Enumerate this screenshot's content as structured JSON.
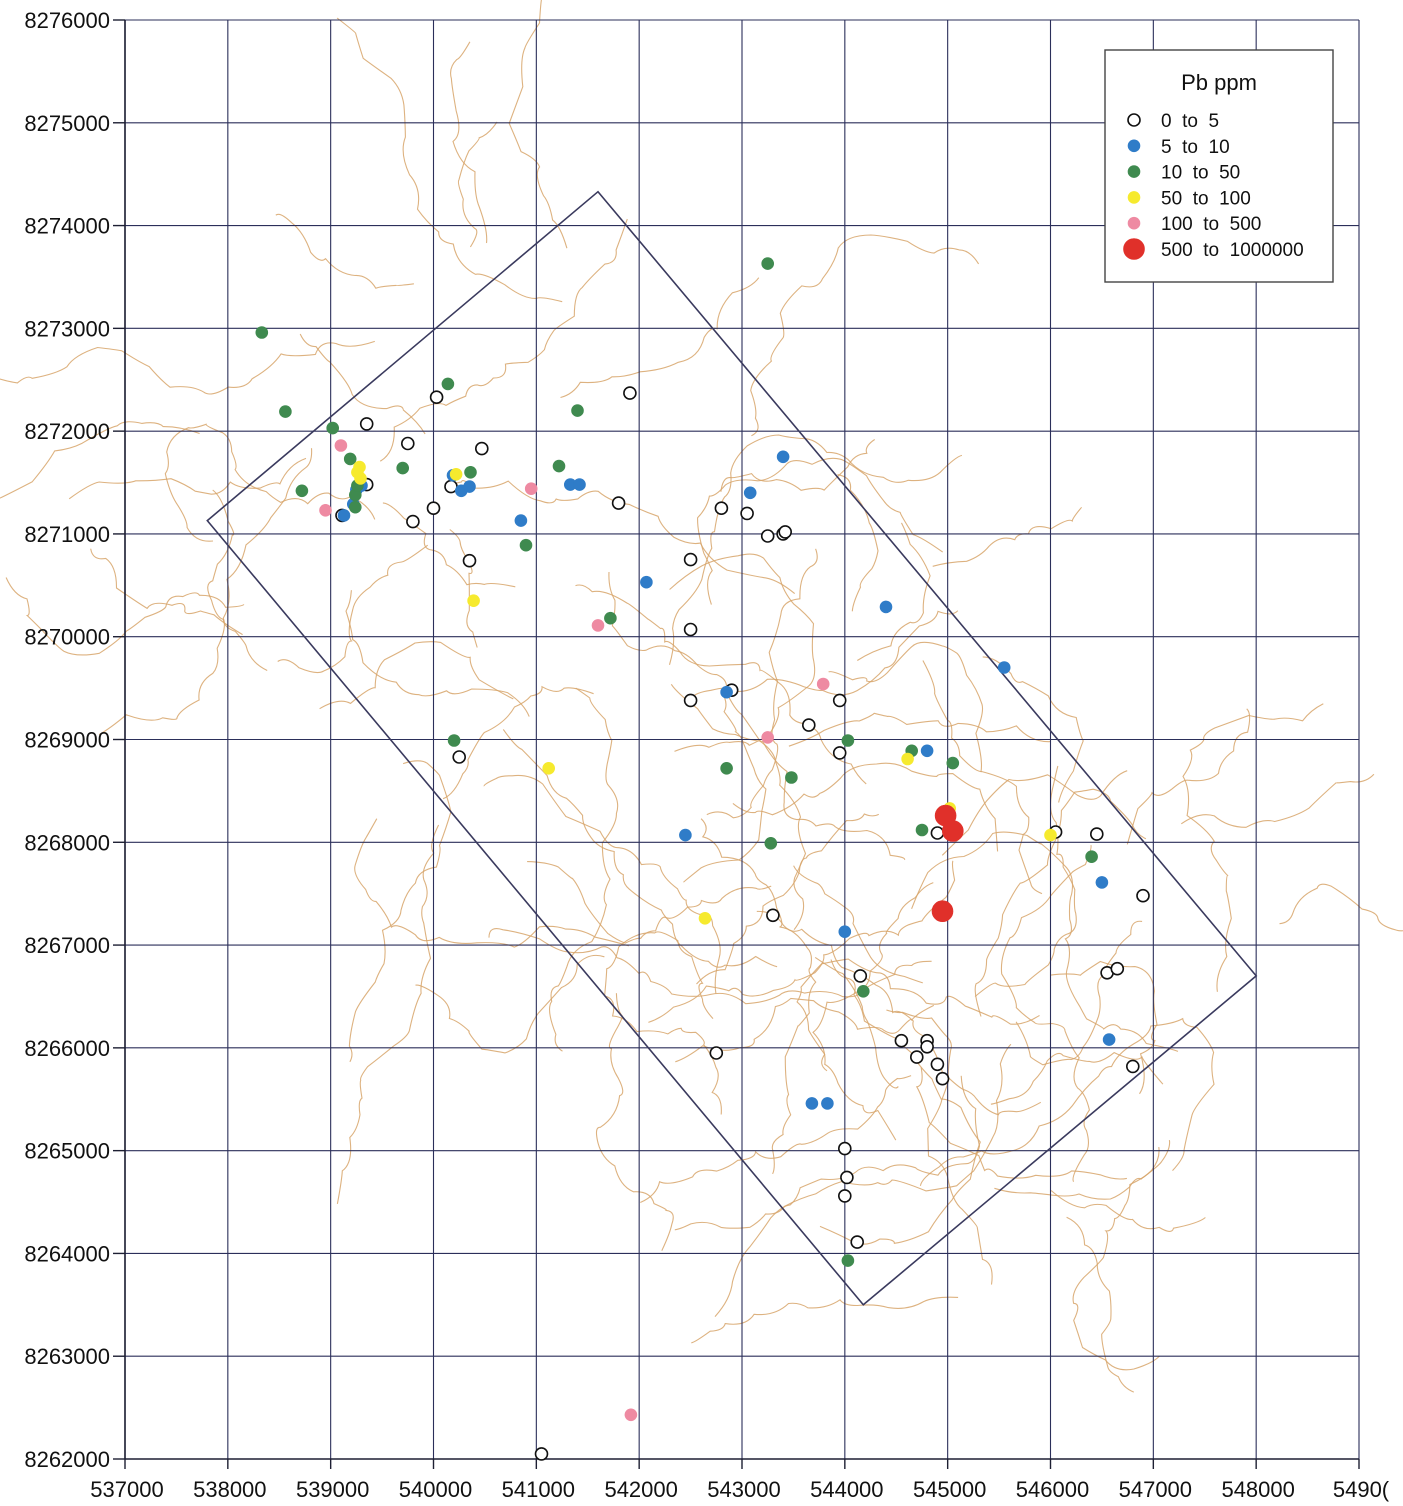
{
  "chart_data": {
    "type": "scatter",
    "title": "",
    "xlabel": "",
    "ylabel": "",
    "xlim": [
      537000,
      549000
    ],
    "ylim": [
      8262000,
      8276000
    ],
    "grid": true,
    "x_ticks": [
      "537000",
      "538000",
      "539000",
      "540000",
      "541000",
      "542000",
      "543000",
      "544000",
      "545000",
      "546000",
      "547000",
      "548000",
      "5490("
    ],
    "y_ticks": [
      "8276000",
      "8275000",
      "8274000",
      "8273000",
      "8272000",
      "8271000",
      "8270000",
      "8269000",
      "8268000",
      "8267000",
      "8266000",
      "8265000",
      "8264000",
      "8263000",
      "8262000"
    ],
    "legend": {
      "title": "Pb ppm",
      "placement": "top-right",
      "entries": [
        {
          "label": "0  to  5",
          "class": "c0",
          "color": "#ffffff",
          "stroke": "#111111"
        },
        {
          "label": "5  to  10",
          "class": "c1",
          "color": "#2f7cc8",
          "stroke": "#2f7cc8"
        },
        {
          "label": "10  to  50",
          "class": "c2",
          "color": "#3f8a4f",
          "stroke": "#3f8a4f"
        },
        {
          "label": "50  to  100",
          "class": "c3",
          "color": "#f6ea2e",
          "stroke": "#f6ea2e"
        },
        {
          "label": "100  to  500",
          "class": "c4",
          "color": "#ee8aa2",
          "stroke": "#ee8aa2"
        },
        {
          "label": "500  to  1000000",
          "class": "c5",
          "color": "#e0302a",
          "stroke": "#e0302a"
        }
      ]
    },
    "survey_polygon": [
      [
        537800,
        8271130
      ],
      [
        541600,
        8274330
      ],
      [
        548000,
        8266700
      ],
      [
        544180,
        8263500
      ]
    ],
    "series": [
      {
        "class": "c0",
        "x": [
          540030,
          541910,
          539350,
          539750,
          540470,
          540170,
          540000,
          539800,
          539350,
          539110,
          540350,
          541800,
          542800,
          543050,
          543250,
          543400,
          543420,
          542500,
          542500,
          542500,
          542900,
          543650,
          543950,
          543950,
          540250,
          544900,
          546050,
          546450,
          546900,
          543300,
          544150,
          546550,
          546650,
          542750,
          544550,
          544700,
          544800,
          544900,
          544950,
          544800,
          546800,
          544000,
          544020,
          544000,
          544120,
          541050
        ],
        "y": [
          8272330,
          8272370,
          8272070,
          8271880,
          8271830,
          8271460,
          8271250,
          8271120,
          8271480,
          8271180,
          8270740,
          8271300,
          8271250,
          8271200,
          8270980,
          8271000,
          8271020,
          8270750,
          8270070,
          8269380,
          8269480,
          8269140,
          8269380,
          8268870,
          8268830,
          8268090,
          8268100,
          8268080,
          8267480,
          8267290,
          8266700,
          8266730,
          8266770,
          8265950,
          8266070,
          8265910,
          8266070,
          8265840,
          8265700,
          8266010,
          8265820,
          8265020,
          8264740,
          8264560,
          8264110,
          8262050
        ]
      },
      {
        "class": "c1",
        "x": [
          539130,
          539220,
          539250,
          539300,
          540190,
          540270,
          540350,
          540850,
          541330,
          541420,
          543080,
          543400,
          542070,
          544400,
          544800,
          545550,
          542850,
          542450,
          544000,
          546500,
          546570,
          543680,
          543830
        ],
        "y": [
          8271180,
          8271290,
          8271430,
          8271470,
          8271570,
          8271420,
          8271460,
          8271130,
          8271480,
          8271480,
          8271400,
          8271750,
          8270530,
          8270290,
          8268890,
          8269700,
          8269460,
          8268070,
          8267130,
          8267610,
          8266080,
          8265460,
          8265460
        ]
      },
      {
        "class": "c2",
        "x": [
          538330,
          538560,
          538720,
          539020,
          539190,
          539240,
          539260,
          539240,
          539700,
          540140,
          540360,
          541220,
          541400,
          540900,
          541720,
          543250,
          540200,
          542850,
          543480,
          543280,
          544030,
          544650,
          544750,
          545050,
          546400,
          544180,
          544030
        ],
        "y": [
          8272960,
          8272190,
          8271420,
          8272030,
          8271730,
          8271380,
          8271470,
          8271260,
          8271640,
          8272460,
          8271600,
          8271660,
          8272200,
          8270890,
          8270180,
          8273630,
          8268990,
          8268720,
          8268630,
          8267990,
          8268990,
          8268890,
          8268120,
          8268770,
          8267860,
          8266550,
          8263930
        ]
      },
      {
        "class": "c3",
        "x": [
          539280,
          539290,
          539260,
          540220,
          540390,
          541120,
          542640,
          544610,
          545020,
          546000
        ],
        "y": [
          8271650,
          8271540,
          8271600,
          8271580,
          8270350,
          8268720,
          8267260,
          8268810,
          8268330,
          8268070
        ]
      },
      {
        "class": "c4",
        "x": [
          539100,
          538950,
          540950,
          541600,
          543250,
          543790,
          541920
        ],
        "y": [
          8271860,
          8271230,
          8271440,
          8270110,
          8269020,
          8269540,
          8262430
        ]
      },
      {
        "class": "c5",
        "x": [
          544980,
          545050,
          544950
        ],
        "y": [
          8268260,
          8268110,
          8267330
        ]
      }
    ]
  },
  "colors": {
    "grid": "#2b2f5a",
    "polygon": "#3a3a5e",
    "contour": "#d7a56a",
    "axis": "#1d1f33"
  }
}
